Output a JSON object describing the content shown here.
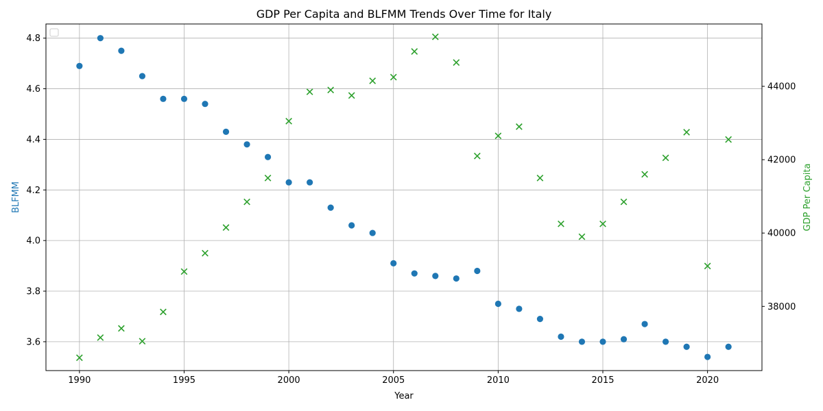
{
  "chart_data": {
    "type": "scatter",
    "title": "GDP Per Capita and BLFMM Trends Over Time for Italy",
    "xlabel": "Year",
    "ylabel_left": "BLFMM",
    "ylabel_right": "GDP Per Capita",
    "x": [
      1990,
      1991,
      1992,
      1993,
      1994,
      1995,
      1996,
      1997,
      1998,
      1999,
      2000,
      2001,
      2002,
      2003,
      2004,
      2005,
      2006,
      2007,
      2008,
      2009,
      2010,
      2011,
      2012,
      2013,
      2014,
      2015,
      2016,
      2017,
      2018,
      2019,
      2020,
      2021
    ],
    "series": [
      {
        "name": "",
        "axis": "left",
        "marker": "circle",
        "color": "#1f77b4",
        "values": [
          4.69,
          4.8,
          4.75,
          4.65,
          4.56,
          4.56,
          4.54,
          4.43,
          4.38,
          4.33,
          4.23,
          4.23,
          4.13,
          4.06,
          4.03,
          3.91,
          3.87,
          3.86,
          3.85,
          3.88,
          3.75,
          3.73,
          3.69,
          3.62,
          3.6,
          3.6,
          3.61,
          3.67,
          3.6,
          3.58,
          3.54,
          3.58
        ]
      },
      {
        "name": "",
        "axis": "right",
        "marker": "x",
        "color": "#2ca02c",
        "values": [
          36600,
          37150,
          37400,
          37050,
          37850,
          38950,
          39450,
          40150,
          40850,
          41500,
          43050,
          43850,
          43900,
          43750,
          44150,
          44250,
          44950,
          45350,
          44650,
          42100,
          42650,
          42900,
          41500,
          40250,
          39900,
          40250,
          40850,
          41600,
          42050,
          42750,
          39100,
          42550
        ]
      }
    ],
    "xlim": [
      1988.4,
      2022.6
    ],
    "ylim_left": [
      3.486,
      4.856
    ],
    "ylim_right": [
      36250,
      45700
    ],
    "xticks": [
      1990,
      1995,
      2000,
      2005,
      2010,
      2015,
      2020
    ],
    "yticks_left": [
      3.6,
      3.8,
      4.0,
      4.2,
      4.4,
      4.6,
      4.8
    ],
    "yticks_left_labels": [
      "3.6",
      "3.8",
      "4.0",
      "4.2",
      "4.4",
      "4.6",
      "4.8"
    ],
    "yticks_right": [
      38000,
      40000,
      42000,
      44000
    ],
    "yticks_right_labels": [
      "38000",
      "40000",
      "42000",
      "44000"
    ],
    "grid": true,
    "legend": "upper-left (empty)"
  }
}
